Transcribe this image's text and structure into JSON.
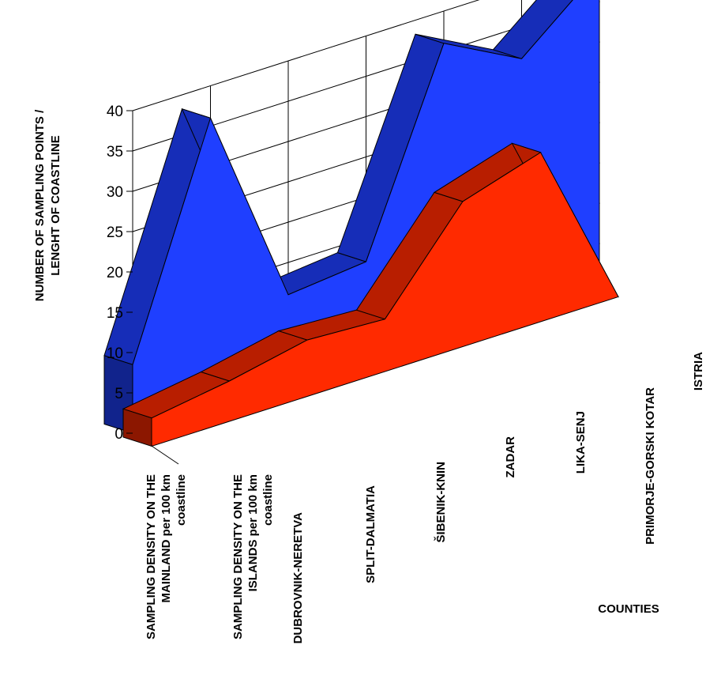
{
  "chart_data": {
    "type": "area",
    "view": "3d",
    "categories": [
      "DUBROVNIK-NERETVA",
      "SPLIT-DALMATIA",
      "ŠIBENIK-KNIN",
      "ZADAR",
      "LIKA-SENJ",
      "PRIMORJE-GORSKI KOTAR",
      "ISTRIA"
    ],
    "series": [
      {
        "name": "SAMPLING DENSITY ON THE MAINLAND per 100 km coastline",
        "color": "#1f3fff",
        "values": [
          8.5,
          36,
          11,
          12,
          36,
          31,
          39
        ]
      },
      {
        "name": "SAMPLING DENSITY ON THE ISLANDS per 100 km coastline",
        "color": "#ff2a00",
        "values": [
          3.5,
          5,
          7,
          6.5,
          18,
          21,
          0
        ]
      }
    ],
    "ylabel": "NUMBER OF SAMPLING POINTS / LENGHT OF  COASTLINE",
    "ylabel_lines": [
      "NUMBER OF SAMPLING POINTS /",
      "LENGHT OF  COASTLINE"
    ],
    "xlabel": "COUNTIES",
    "ylim": [
      0,
      40
    ],
    "yticks": [
      "0",
      "5",
      "10",
      "15",
      "20",
      "25",
      "30",
      "35",
      "40"
    ],
    "series_label_lines": [
      [
        "SAMPLING DENSITY ON THE",
        "MAINLAND per 100 km",
        "coastline"
      ],
      [
        "SAMPLING DENSITY ON THE",
        "ISLANDS per 100 km",
        "coastline"
      ]
    ],
    "grid": true
  }
}
